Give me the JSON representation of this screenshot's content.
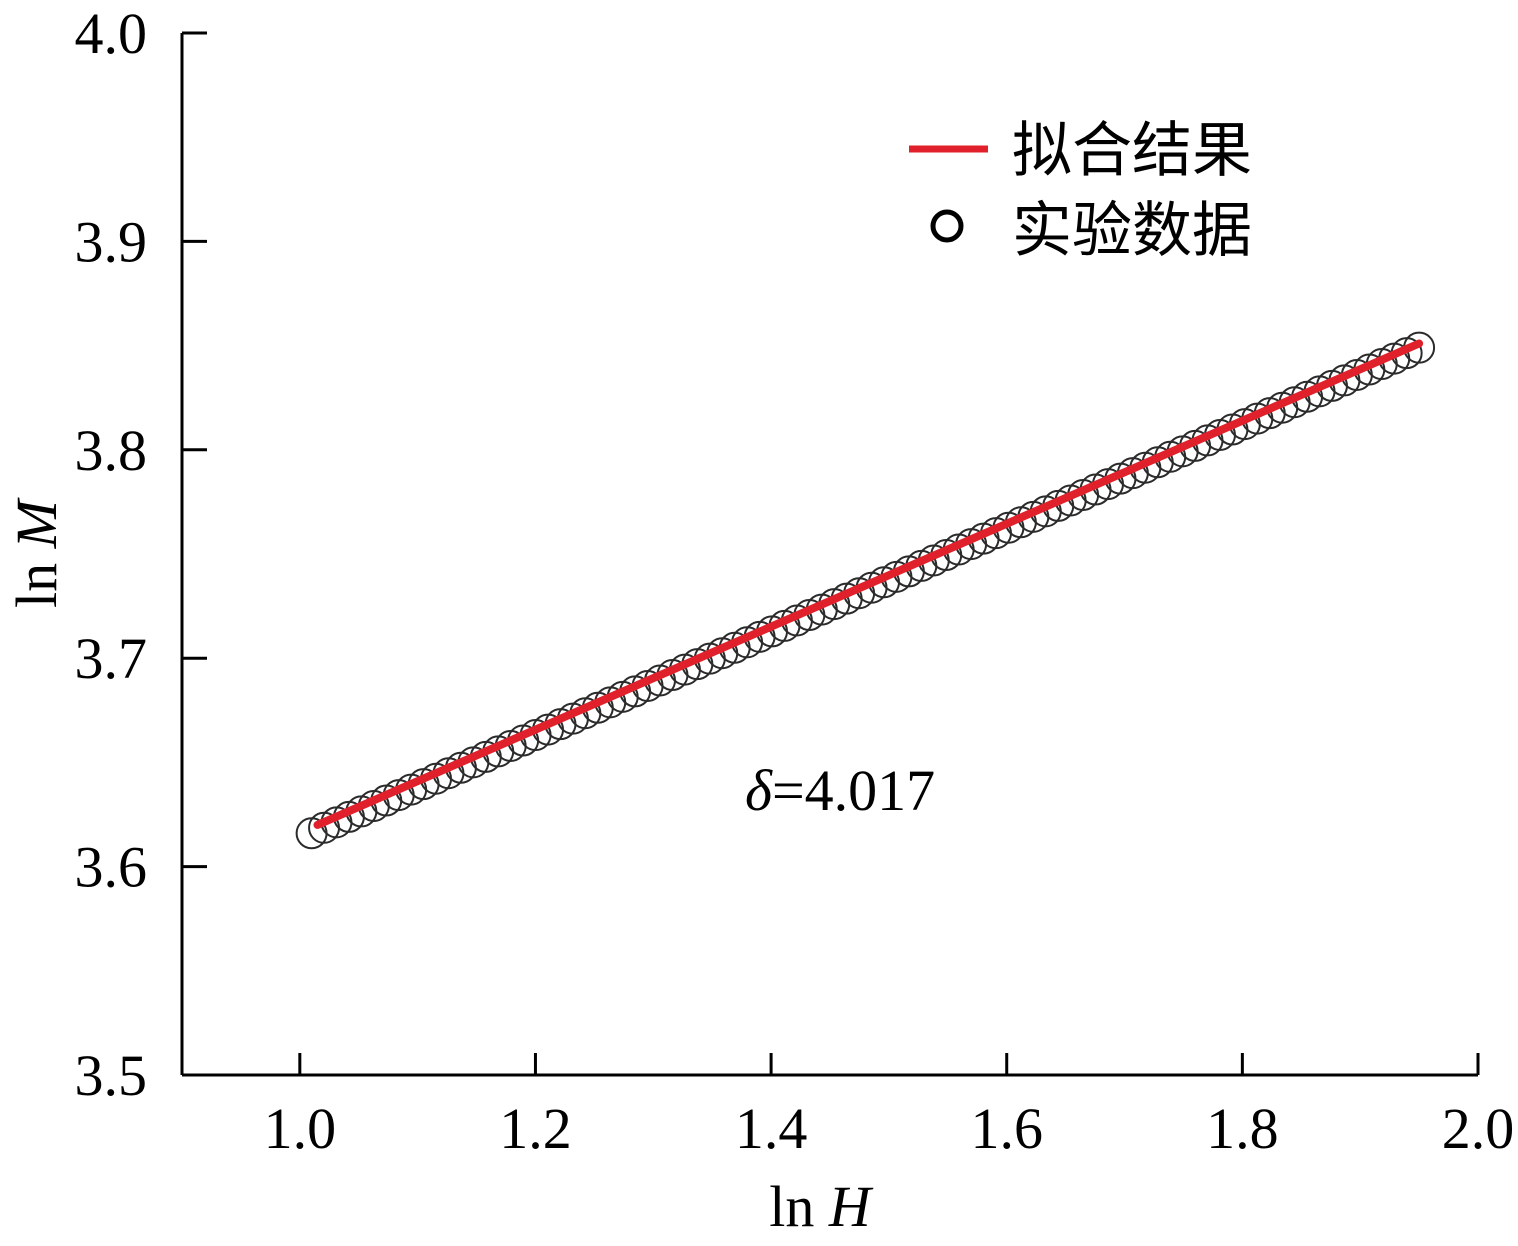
{
  "chart_data": {
    "type": "scatter",
    "xlabel_prefix": "ln ",
    "xlabel_var": "H",
    "ylabel_prefix": "ln ",
    "ylabel_var": "M",
    "xlim": [
      0.9,
      2.0
    ],
    "ylim": [
      3.5,
      4.0
    ],
    "x_ticks": [
      "1.0",
      "1.2",
      "1.4",
      "1.6",
      "1.8",
      "2.0"
    ],
    "x_tick_values": [
      1.0,
      1.2,
      1.4,
      1.6,
      1.8,
      2.0
    ],
    "y_ticks": [
      "3.5",
      "3.6",
      "3.7",
      "3.8",
      "3.9",
      "4.0"
    ],
    "y_tick_values": [
      3.5,
      3.6,
      3.7,
      3.8,
      3.9,
      4.0
    ],
    "grid": false,
    "legend_position": "top-right",
    "legend": [
      {
        "label": "拟合结果",
        "marker": "line",
        "color": "#e0202a"
      },
      {
        "label": "实验数据",
        "marker": "open-circle",
        "color": "#000000"
      }
    ],
    "annotation": {
      "symbol": "δ",
      "text": "=4.017"
    },
    "series": [
      {
        "name": "实验数据",
        "style": "open-circle",
        "x_start": 1.01,
        "x_end": 1.95,
        "count": 90,
        "y_start": 3.616,
        "y_end": 3.849
      },
      {
        "name": "拟合结果",
        "style": "line",
        "color": "#e0202a",
        "x": [
          1.015,
          1.95
        ],
        "y": [
          3.62,
          3.851
        ]
      }
    ]
  }
}
